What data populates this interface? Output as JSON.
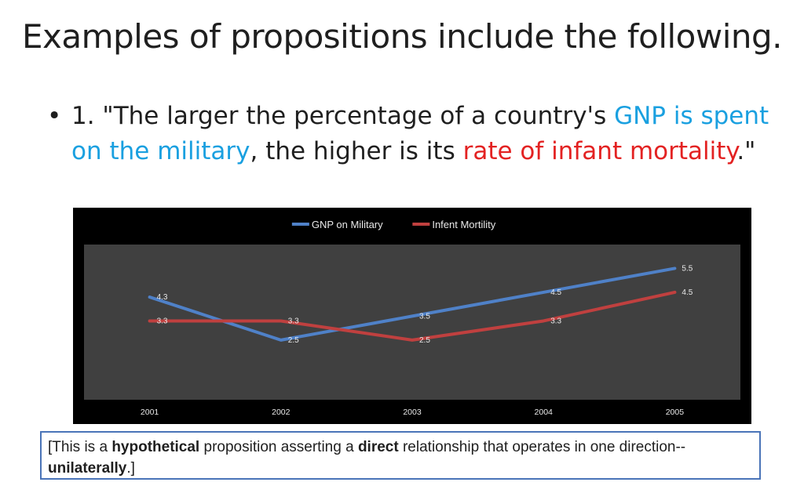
{
  "slide": {
    "title": "Examples of propositions include the following.",
    "bullet_marker": "•",
    "bullet": {
      "prefix": "1. \"The larger the percentage of a country's ",
      "highlight_1": "GNP is spent on the military",
      "middle": ", the higher is its ",
      "highlight_2": "rate of infant mortality",
      "suffix": ".\""
    },
    "note": {
      "part1": "[This is a ",
      "bold1": "hypothetical",
      "part2": " proposition asserting a ",
      "bold2": "direct",
      "part3": " relationship that operates in one direction--",
      "bold3": "unilaterally",
      "part4": ".]"
    },
    "colors": {
      "highlight_blue": "#1aa0e0",
      "highlight_red": "#e32222",
      "note_border": "#4a74b8"
    }
  },
  "chart_data": {
    "type": "line",
    "categories": [
      "2001",
      "2002",
      "2003",
      "2004",
      "2005"
    ],
    "series": [
      {
        "name": "GNP on Military",
        "values": [
          4.3,
          2.5,
          3.5,
          4.5,
          5.5
        ],
        "color": "#4f81c8"
      },
      {
        "name": "Infent Mortility",
        "values": [
          3.3,
          3.3,
          2.5,
          3.3,
          4.5
        ],
        "color": "#c0403f"
      }
    ],
    "ylim": [
      0,
      6.5
    ],
    "legend_position": "top-center",
    "grid": false,
    "outer_background": "#000000",
    "plot_background": "#404040"
  }
}
